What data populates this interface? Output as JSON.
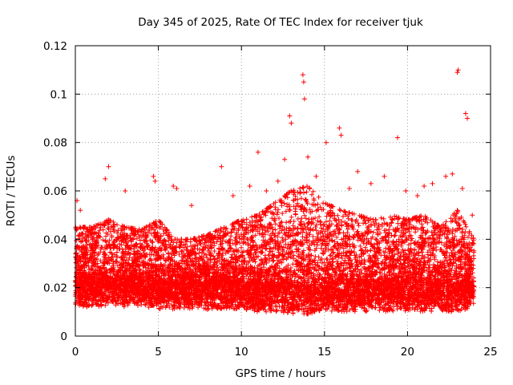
{
  "chart_data": {
    "type": "scatter",
    "title": "Day 345 of 2025, Rate Of TEC Index for receiver tjuk",
    "xlabel": "GPS time / hours",
    "ylabel": "ROTI / TECUs",
    "xlim": [
      0,
      25
    ],
    "ylim": [
      0,
      0.12
    ],
    "xticks": [
      0,
      5,
      10,
      15,
      20,
      25
    ],
    "xtick_labels": [
      "0",
      "5",
      "10",
      "15",
      "20",
      "25"
    ],
    "yticks": [
      0,
      0.02,
      0.04,
      0.06,
      0.08,
      0.1,
      0.12
    ],
    "ytick_labels": [
      "0",
      "0.02",
      "0.04",
      "0.06",
      "0.08",
      "0.1",
      "0.12"
    ],
    "grid": true,
    "marker": "+",
    "series": [
      {
        "name": "ROTI",
        "color": "#ff0000",
        "note": "dense cloud of points from 0 to 24 h; bulk between 0.005 and 0.035 TECU/s",
        "x": [
          0.05,
          0.2,
          0.4,
          0.6,
          0.8,
          1.0,
          1.2,
          1.4,
          1.6,
          1.8,
          2.0,
          2.2,
          2.4,
          2.6,
          2.8,
          3.0,
          3.2,
          3.4,
          3.6,
          3.8,
          4.0,
          4.2,
          4.4,
          4.6,
          4.8,
          5.0,
          5.2,
          5.4,
          5.6,
          5.8,
          6.0,
          6.2,
          6.4,
          6.6,
          6.8,
          7.0,
          7.2,
          7.4,
          7.6,
          7.8,
          8.0,
          8.2,
          8.4,
          8.6,
          8.8,
          9.0,
          9.2,
          9.4,
          9.6,
          9.8,
          10.0,
          10.2,
          10.4,
          10.6,
          10.8,
          11.0,
          11.2,
          11.4,
          11.6,
          11.8,
          12.0,
          12.2,
          12.4,
          12.6,
          12.8,
          13.0,
          13.2,
          13.4,
          13.6,
          13.8,
          14.0,
          14.2,
          14.4,
          14.6,
          14.8,
          15.0,
          15.2,
          15.4,
          15.6,
          15.8,
          16.0,
          16.2,
          16.4,
          16.6,
          16.8,
          17.0,
          17.2,
          17.4,
          17.6,
          17.8,
          18.0,
          18.2,
          18.4,
          18.6,
          18.8,
          19.0,
          19.2,
          19.4,
          19.6,
          19.8,
          20.0,
          20.2,
          20.4,
          20.6,
          20.8,
          21.0,
          21.2,
          21.4,
          21.6,
          21.8,
          22.0,
          22.2,
          22.4,
          22.6,
          22.8,
          23.0,
          23.2,
          23.4,
          23.6,
          23.8,
          13.7,
          13.75,
          13.8,
          23.0,
          23.05,
          23.5,
          23.6,
          12.9,
          15.9,
          16.0,
          15.1,
          19.4,
          5.9,
          6.1,
          1.8,
          2.0,
          4.7,
          4.8,
          8.8,
          11.0,
          12.6,
          13.0,
          14.0,
          17.0,
          18.6,
          21.0,
          22.3,
          0.1,
          0.3,
          1.5,
          3.0,
          7.0,
          9.5,
          10.5,
          11.5,
          12.2,
          14.5,
          16.5,
          17.8,
          19.9,
          20.6,
          21.5,
          22.7,
          23.3,
          23.9
        ],
        "y": [
          0.018,
          0.016,
          0.02,
          0.017,
          0.015,
          0.019,
          0.016,
          0.018,
          0.017,
          0.02,
          0.021,
          0.017,
          0.016,
          0.018,
          0.019,
          0.015,
          0.017,
          0.018,
          0.016,
          0.019,
          0.017,
          0.016,
          0.018,
          0.017,
          0.019,
          0.018,
          0.016,
          0.015,
          0.017,
          0.016,
          0.015,
          0.016,
          0.017,
          0.015,
          0.016,
          0.015,
          0.014,
          0.016,
          0.015,
          0.017,
          0.016,
          0.018,
          0.017,
          0.016,
          0.018,
          0.017,
          0.019,
          0.018,
          0.02,
          0.019,
          0.018,
          0.02,
          0.019,
          0.021,
          0.02,
          0.022,
          0.02,
          0.021,
          0.022,
          0.02,
          0.022,
          0.021,
          0.023,
          0.022,
          0.024,
          0.022,
          0.023,
          0.021,
          0.024,
          0.022,
          0.023,
          0.021,
          0.022,
          0.02,
          0.021,
          0.02,
          0.019,
          0.02,
          0.018,
          0.019,
          0.018,
          0.017,
          0.019,
          0.017,
          0.018,
          0.016,
          0.017,
          0.016,
          0.018,
          0.017,
          0.016,
          0.017,
          0.018,
          0.016,
          0.017,
          0.018,
          0.017,
          0.016,
          0.017,
          0.016,
          0.015,
          0.016,
          0.017,
          0.015,
          0.016,
          0.017,
          0.016,
          0.018,
          0.017,
          0.016,
          0.018,
          0.017,
          0.019,
          0.018,
          0.016,
          0.015,
          0.017,
          0.016,
          0.015,
          0.017,
          0.108,
          0.105,
          0.098,
          0.109,
          0.11,
          0.092,
          0.09,
          0.091,
          0.086,
          0.083,
          0.08,
          0.082,
          0.062,
          0.061,
          0.065,
          0.07,
          0.066,
          0.064,
          0.07,
          0.076,
          0.073,
          0.088,
          0.074,
          0.068,
          0.066,
          0.062,
          0.066,
          0.056,
          0.052,
          0.046,
          0.06,
          0.054,
          0.058,
          0.062,
          0.06,
          0.064,
          0.066,
          0.061,
          0.063,
          0.06,
          0.058,
          0.063,
          0.067,
          0.061,
          0.05
        ],
        "density_profile_hours": [
          0,
          1,
          2,
          3,
          4,
          5,
          6,
          7,
          8,
          9,
          10,
          11,
          12,
          13,
          14,
          15,
          16,
          17,
          18,
          19,
          20,
          21,
          22,
          23,
          24
        ],
        "typical_upper_envelope": [
          0.045,
          0.045,
          0.048,
          0.045,
          0.044,
          0.048,
          0.04,
          0.04,
          0.042,
          0.045,
          0.048,
          0.05,
          0.055,
          0.06,
          0.062,
          0.055,
          0.052,
          0.05,
          0.048,
          0.05,
          0.048,
          0.05,
          0.045,
          0.052,
          0.04
        ],
        "typical_lower_envelope": [
          0.008,
          0.008,
          0.008,
          0.008,
          0.008,
          0.007,
          0.007,
          0.007,
          0.007,
          0.007,
          0.007,
          0.006,
          0.006,
          0.005,
          0.005,
          0.006,
          0.006,
          0.006,
          0.006,
          0.006,
          0.006,
          0.006,
          0.006,
          0.006,
          0.008
        ]
      }
    ]
  }
}
